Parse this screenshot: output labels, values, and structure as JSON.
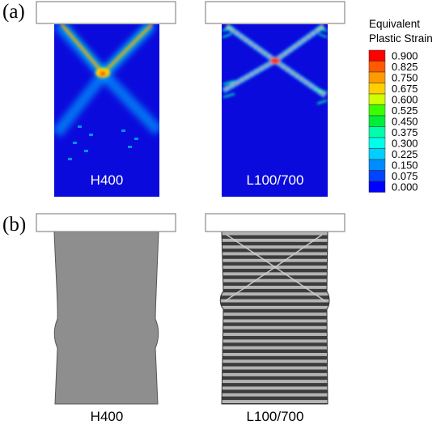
{
  "panel_labels": {
    "a": "(a)",
    "b": "(b)"
  },
  "specimens": {
    "left": "H400",
    "right": "L100/700"
  },
  "legend": {
    "title_line1": "Equivalent",
    "title_line2": "Plastic Strain",
    "ticks": [
      "0.900",
      "0.825",
      "0.750",
      "0.675",
      "0.600",
      "0.525",
      "0.450",
      "0.375",
      "0.300",
      "0.225",
      "0.150",
      "0.075",
      "0.000"
    ],
    "colors": [
      "#ff0000",
      "#ff5a00",
      "#ff9b00",
      "#ffcf00",
      "#cfff00",
      "#3aff00",
      "#00ee3a",
      "#00ffaa",
      "#00ffe8",
      "#00cfff",
      "#008bff",
      "#0044ff",
      "#0000ff"
    ]
  },
  "colors": {
    "contour_base": "#0a0adc",
    "platen_fill": "#ffffff",
    "platen_stroke": "#8a8a8a",
    "specimen_gray": "#8e8e8e",
    "stripe_dark": "#3c3c3c",
    "stripe_light": "#b4b4b4"
  }
}
